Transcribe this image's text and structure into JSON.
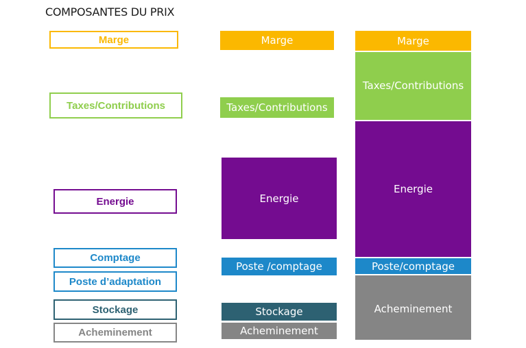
{
  "title": "COMPOSANTES DU PRIX",
  "colors": {
    "marge": "#fbb800",
    "taxes": "#8fce4d",
    "energie": "#740c90",
    "comptage": "#1d88c9",
    "poste": "#1d88c9",
    "stockage": "#2d6172",
    "acheminement": "#858585"
  },
  "legend": {
    "marge": "Marge",
    "taxes": "Taxes/Contributions",
    "energie": "Energie",
    "comptage": "Comptage",
    "poste": "Poste d’adaptation",
    "stockage": "Stockage",
    "acheminement": "Acheminement"
  },
  "column2": {
    "marge": "Marge",
    "taxes": "Taxes/Contributions",
    "energie": "Energie",
    "poste": "Poste /comptage",
    "stockage": "Stockage",
    "acheminement": "Acheminement"
  },
  "column3": {
    "marge": "Marge",
    "taxes": "Taxes/Contributions",
    "energie": "Energie",
    "poste": "Poste/comptage",
    "acheminement": "Acheminement"
  }
}
